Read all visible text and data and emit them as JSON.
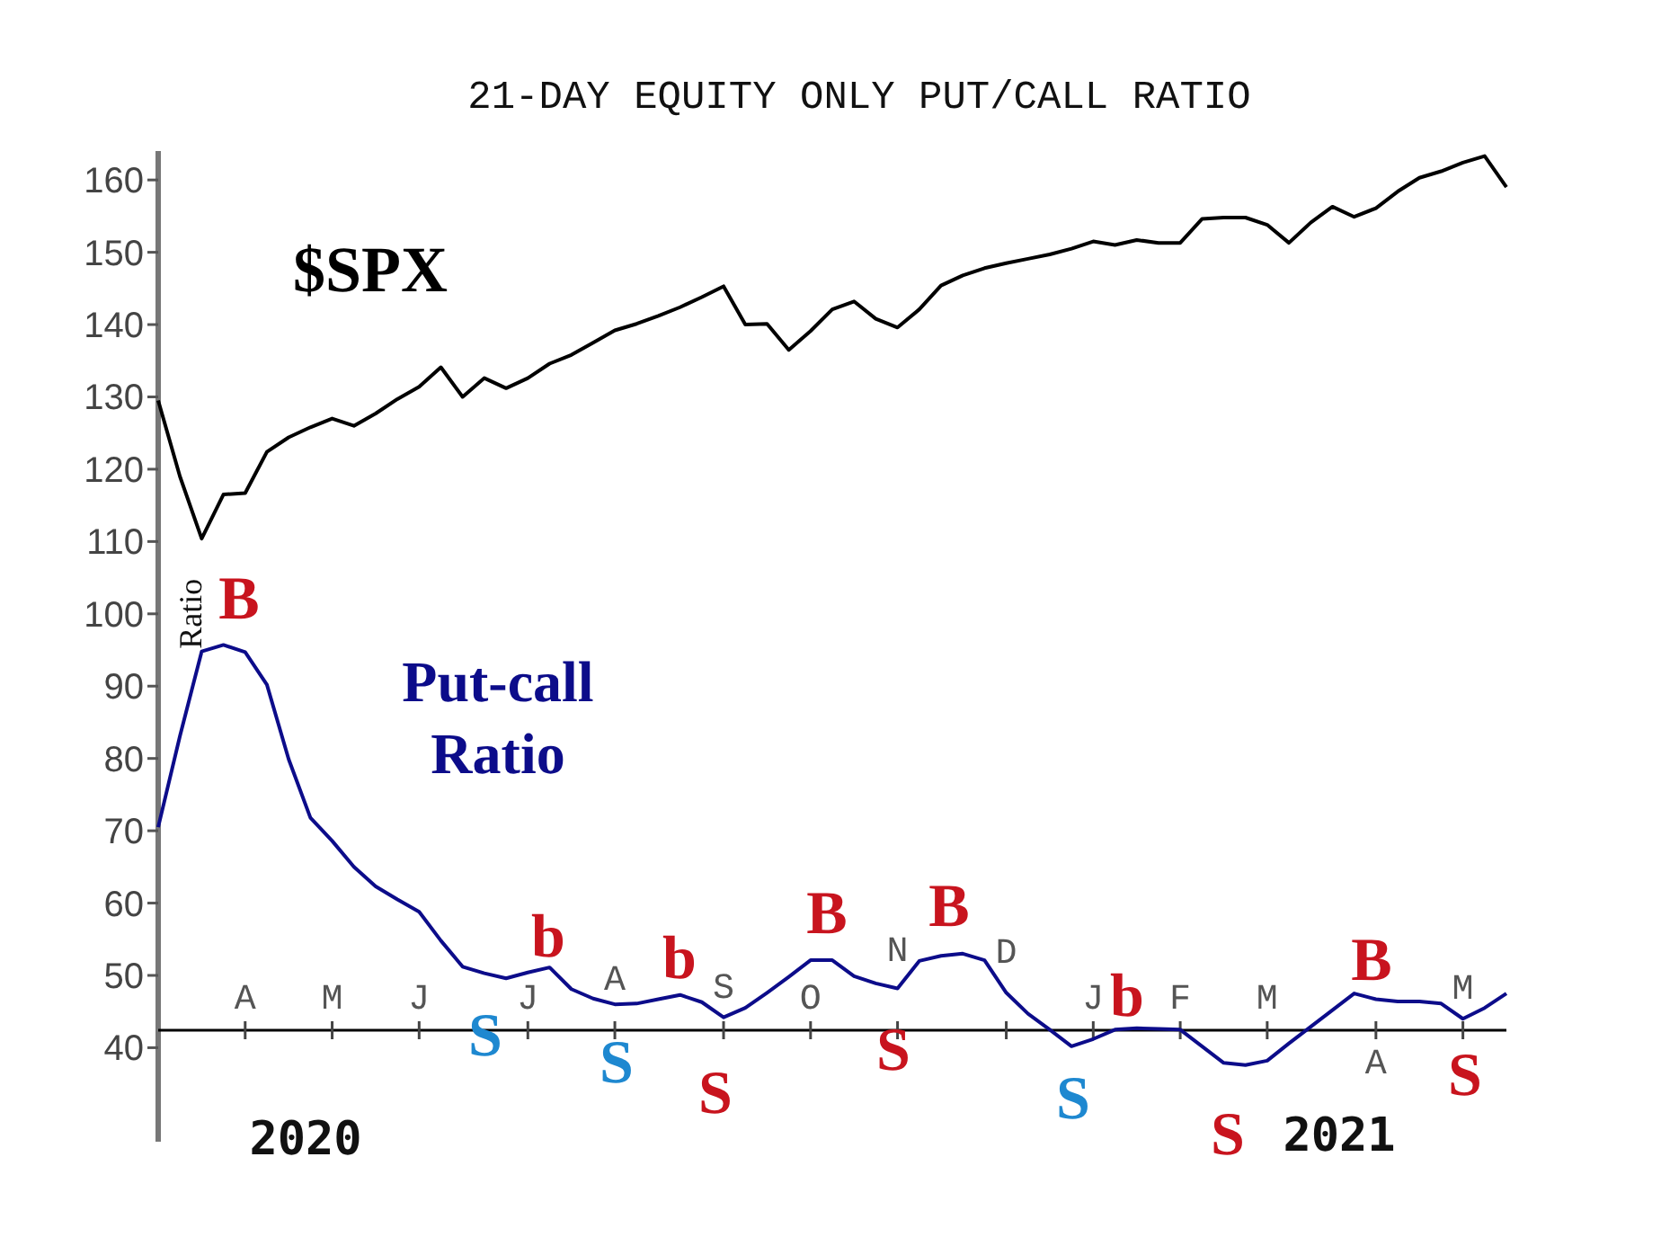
{
  "chart_data": {
    "type": "line",
    "title": "21-DAY EQUITY ONLY PUT/CALL RATIO",
    "ylabel": "Ratio",
    "categories": [
      null,
      null,
      null,
      null,
      "A",
      null,
      null,
      null,
      "M",
      null,
      null,
      null,
      "J",
      null,
      null,
      null,
      null,
      "J",
      null,
      null,
      null,
      "A",
      null,
      null,
      null,
      null,
      "S",
      null,
      null,
      null,
      "O",
      null,
      null,
      null,
      "N",
      null,
      null,
      null,
      null,
      "D",
      null,
      null,
      null,
      "J",
      null,
      null,
      null,
      "F",
      null,
      null,
      null,
      "M",
      null,
      null,
      null,
      null,
      "A",
      null,
      null,
      null,
      "M",
      null,
      null
    ],
    "ylim": [
      27,
      164
    ],
    "yticks": [
      40,
      50,
      60,
      70,
      80,
      90,
      100,
      110,
      120,
      130,
      140,
      150,
      160
    ],
    "series": [
      {
        "name": "$SPX",
        "color": "#000000",
        "values": [
          129.5,
          119,
          110.4,
          116.5,
          116.7,
          122.4,
          124.4,
          125.8,
          127,
          126,
          127.7,
          129.7,
          131.4,
          134.1,
          130,
          132.6,
          131.2,
          132.6,
          134.6,
          135.8,
          137.5,
          139.2,
          140.1,
          141.2,
          142.4,
          143.8,
          145.3,
          140,
          140.1,
          136.5,
          139.1,
          142.1,
          143.2,
          140.8,
          139.6,
          142.1,
          145.4,
          146.8,
          147.8,
          148.5,
          149.1,
          149.7,
          150.5,
          151.5,
          151,
          151.7,
          151.3,
          151.3,
          154.6,
          154.8,
          154.8,
          153.8,
          151.3,
          154.1,
          156.3,
          154.9,
          156.1,
          158.4,
          160.3,
          161.2,
          162.4,
          163.3,
          159
        ]
      },
      {
        "name": "Put-call Ratio",
        "color": "#0c0c8a",
        "values": [
          70.5,
          83.1,
          94.8,
          95.7,
          94.7,
          90.2,
          79.9,
          71.8,
          68.6,
          65,
          62.3,
          60.5,
          58.8,
          54.8,
          51.2,
          50.3,
          49.6,
          50.4,
          51.1,
          48.1,
          46.8,
          46,
          46.1,
          46.7,
          47.3,
          46.3,
          44.2,
          45.5,
          47.6,
          49.8,
          52.1,
          52.1,
          49.9,
          48.9,
          48.2,
          52,
          52.7,
          53,
          52.1,
          47.6,
          44.7,
          42.5,
          40.2,
          41.2,
          42.5,
          42.7,
          42.6,
          42.5,
          40.2,
          37.9,
          37.6,
          38.2,
          40.6,
          42.9,
          45.2,
          47.5,
          46.7,
          46.4,
          46.4,
          46.1,
          44,
          45.5,
          47.5
        ]
      }
    ],
    "annotations": [
      "B",
      "b",
      "b",
      "B",
      "S",
      "S",
      "S",
      "S",
      "B",
      "S",
      "b",
      "S",
      "B",
      "S",
      "2020",
      "2021"
    ]
  }
}
